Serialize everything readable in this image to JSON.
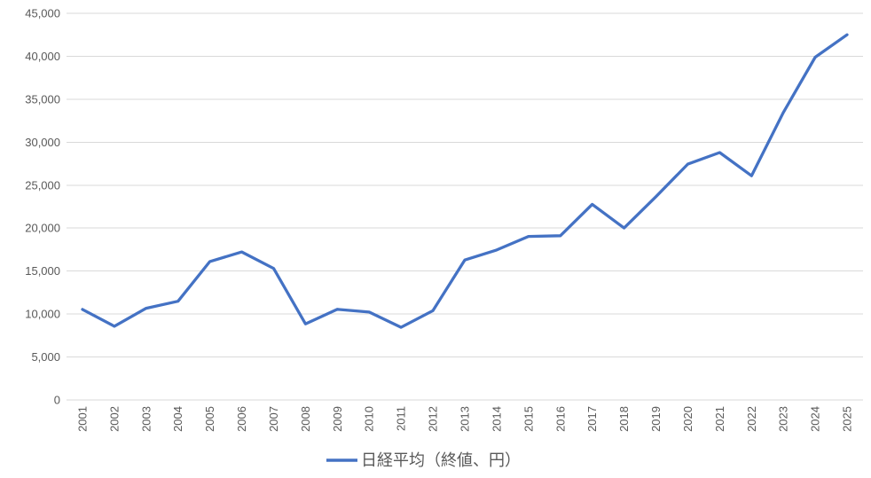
{
  "chart_data": {
    "type": "line",
    "title": "",
    "xlabel": "",
    "ylabel": "",
    "categories": [
      "2001",
      "2002",
      "2003",
      "2004",
      "2005",
      "2006",
      "2007",
      "2008",
      "2009",
      "2010",
      "2011",
      "2012",
      "2013",
      "2014",
      "2015",
      "2016",
      "2017",
      "2018",
      "2019",
      "2020",
      "2021",
      "2022",
      "2023",
      "2024",
      "2025"
    ],
    "series": [
      {
        "name": "日経平均（終値、円）",
        "color": "#4472C4",
        "values": [
          10543,
          8579,
          10677,
          11489,
          16111,
          17226,
          15308,
          8860,
          10546,
          10229,
          8455,
          10395,
          16291,
          17451,
          19034,
          19114,
          22765,
          20015,
          23657,
          27444,
          28792,
          26095,
          33464,
          39895,
          42500
        ]
      }
    ],
    "ylim": [
      0,
      45000
    ],
    "ytick_interval": 5000,
    "ytick_labels": [
      "0",
      "5,000",
      "10,000",
      "15,000",
      "20,000",
      "25,000",
      "30,000",
      "35,000",
      "40,000",
      "45,000"
    ],
    "grid": "horizontal",
    "legend_position": "bottom-center",
    "colors": {
      "line": "#4472C4",
      "gridline": "#D9D9D9",
      "axis_text": "#595959",
      "legend_text": "#595959",
      "background": "#FFFFFF"
    }
  }
}
